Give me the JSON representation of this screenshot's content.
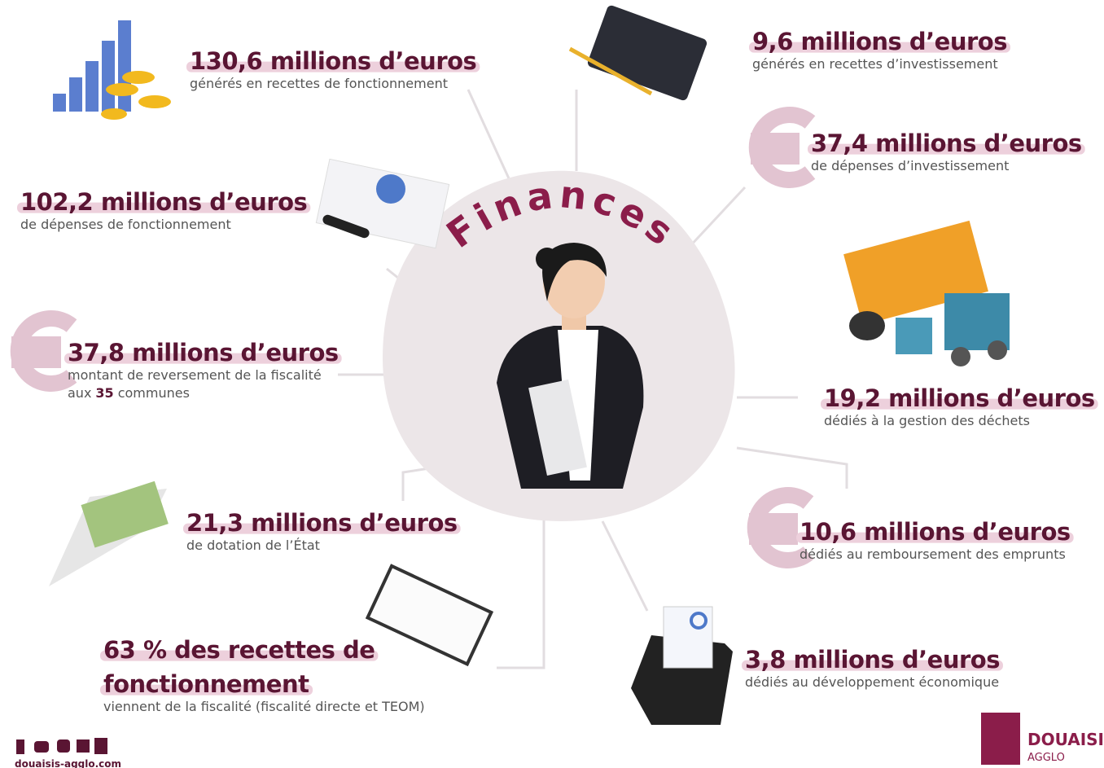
{
  "title": "Finances",
  "items": [
    {
      "headline": [
        "130,6 millions d’euros"
      ],
      "description": [
        "générés en recettes de fonctionnement"
      ]
    },
    {
      "headline": [
        "102,2 millions d’euros"
      ],
      "description": [
        "de dépenses de fonctionnement"
      ]
    },
    {
      "headline": [
        "37,8 millions d’euros"
      ],
      "description": [
        "montant de reversement de la fiscalité"
      ],
      "description_extra": {
        "before": "aux",
        "bold": "35",
        "after": "communes"
      }
    },
    {
      "headline": [
        "21,3 millions d’euros"
      ],
      "description": [
        "de dotation de l’État"
      ]
    },
    {
      "headline": [
        "63 % des recettes de",
        "fonctionnement"
      ],
      "description": [
        "viennent de la fiscalité (fiscalité directe et TEOM)"
      ]
    },
    {
      "headline": [
        "9,6 millions d’euros"
      ],
      "description": [
        "générés en recettes d’investissement"
      ]
    },
    {
      "headline": [
        "37,4 millions d’euros"
      ],
      "description": [
        "de dépenses d’investissement"
      ]
    },
    {
      "headline": [
        "19,2 millions d’euros"
      ],
      "description": [
        "dédiés à la gestion des déchets"
      ]
    },
    {
      "headline": [
        "10,6 millions d’euros"
      ],
      "description": [
        "dédiés au remboursement des emprunts"
      ]
    },
    {
      "headline": [
        "3,8 millions d’euros"
      ],
      "description": [
        "dédiés au développement économique"
      ]
    }
  ],
  "footer": {
    "website": "douaisis-agglo.com"
  },
  "logo": {
    "name": "DOUAISIS",
    "sub": "AGGLO"
  }
}
